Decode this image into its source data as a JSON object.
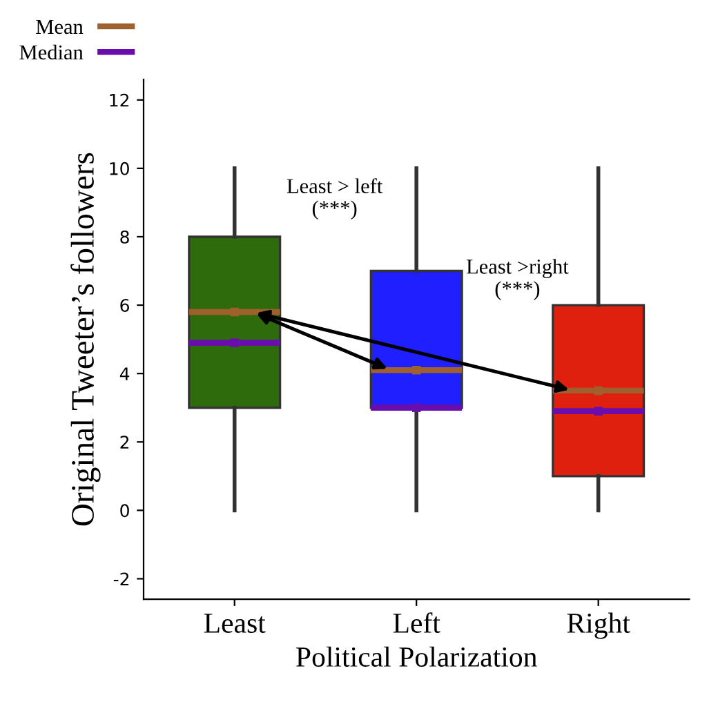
{
  "chart_data": {
    "type": "box",
    "xlabel": "Political Polarization",
    "ylabel": "Original Tweeter’s followers",
    "categories": [
      "Least",
      "Left",
      "Right"
    ],
    "colors": [
      "#2e6b0c",
      "#1f1fff",
      "#e0200f"
    ],
    "boxes": [
      {
        "low": 0,
        "q1": 3,
        "median": 4.9,
        "q3": 8,
        "high": 10
      },
      {
        "low": 0,
        "q1": 3,
        "median": 3.0,
        "q3": 7,
        "high": 10
      },
      {
        "low": 0,
        "q1": 1,
        "median": 2.9,
        "q3": 6,
        "high": 10
      }
    ],
    "marker": "square",
    "series": [
      {
        "name": "Mean",
        "color": "#a0602e",
        "type": "scatter",
        "x": [
          "Least",
          "Left",
          "Right"
        ],
        "values": [
          5.8,
          4.1,
          3.5
        ]
      },
      {
        "name": "Median",
        "color": "#6a0dad",
        "type": "scatter",
        "x": [
          "Least",
          "Left",
          "Right"
        ],
        "values": [
          4.9,
          3.0,
          2.9
        ]
      }
    ],
    "ylim": [
      -2.6,
      12.6
    ],
    "yticks": [
      -2,
      0,
      2,
      4,
      6,
      8,
      10,
      12
    ],
    "annotations": [
      "Least > left\n(***)",
      "Least >right\n(***)"
    ],
    "legend": "top left",
    "grid": false
  }
}
